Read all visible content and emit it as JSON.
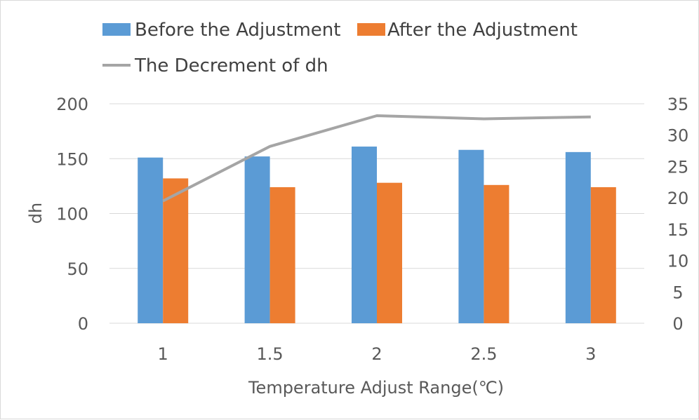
{
  "chart_data": {
    "type": "bar",
    "categories": [
      "1",
      "1.5",
      "2",
      "2.5",
      "3"
    ],
    "series": [
      {
        "name": "Before the Adjustment",
        "type": "bar",
        "axis": "left",
        "color": "#5b9bd5",
        "values": [
          151,
          152,
          161,
          158,
          156
        ]
      },
      {
        "name": "After the Adjustment",
        "type": "bar",
        "axis": "left",
        "color": "#ed7d31",
        "values": [
          132,
          124,
          128,
          126,
          124
        ]
      },
      {
        "name": "The Decrement of dh",
        "type": "line",
        "axis": "right",
        "color": "#a5a5a5",
        "values": [
          19.5,
          28.2,
          33.1,
          32.6,
          32.9
        ]
      }
    ],
    "xlabel": "Temperature Adjust Range(℃)",
    "ylabel": "dh",
    "ylim": [
      0,
      200
    ],
    "yticks": [
      "0",
      "50",
      "100",
      "150",
      "200"
    ],
    "y2lim": [
      0,
      35
    ],
    "y2ticks": [
      "0",
      "5",
      "10",
      "15",
      "20",
      "25",
      "30",
      "35"
    ],
    "grid": true,
    "legend_position": "top-left"
  }
}
